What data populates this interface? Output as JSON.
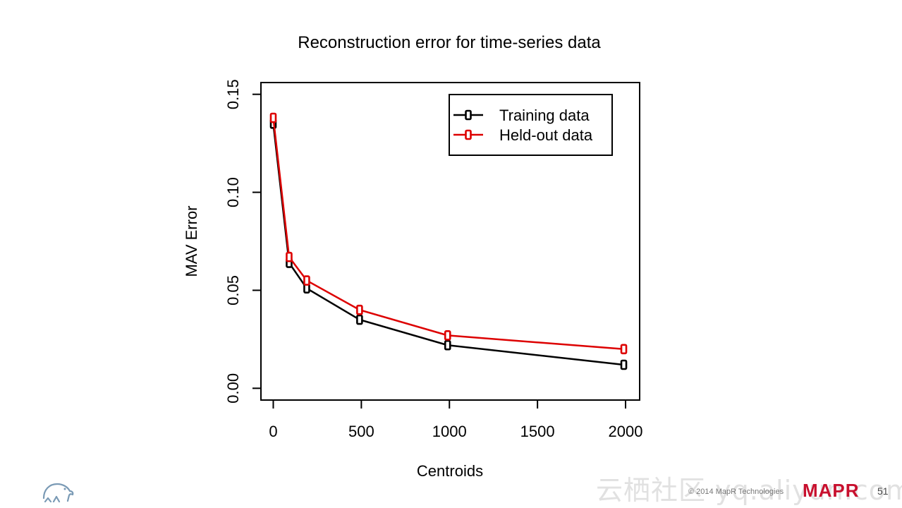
{
  "chart_data": {
    "type": "line",
    "title": "Reconstruction error for time-series data",
    "xlabel": "Centroids",
    "ylabel": "MAV Error",
    "xlim": [
      -70,
      2080
    ],
    "ylim": [
      -0.006,
      0.156
    ],
    "x_ticks": [
      0,
      500,
      1000,
      1500,
      2000
    ],
    "y_ticks": [
      0.0,
      0.05,
      0.1,
      0.15
    ],
    "x_tick_labels": [
      "0",
      "500",
      "1000",
      "1500",
      "2000"
    ],
    "y_tick_labels": [
      "0.00",
      "0.05",
      "0.10",
      "0.15"
    ],
    "x": [
      0,
      90,
      190,
      490,
      990,
      1990
    ],
    "series": [
      {
        "name": "Training data",
        "color": "#000000",
        "marker": "square",
        "values": [
          0.135,
          0.064,
          0.051,
          0.035,
          0.022,
          0.012
        ]
      },
      {
        "name": "Held-out data",
        "color": "#dd0000",
        "marker": "square",
        "values": [
          0.138,
          0.067,
          0.055,
          0.04,
          0.027,
          0.02
        ]
      }
    ],
    "legend_position": "top-right",
    "grid": false
  },
  "footer": {
    "watermark": "云栖社区 yq.aliyun.com",
    "copyright": "© 2014 MapR Technologies",
    "brand": "MAPR",
    "page_number": "51",
    "logo_icon": "elephant-logo-icon",
    "accent_color": "#c8102e"
  }
}
